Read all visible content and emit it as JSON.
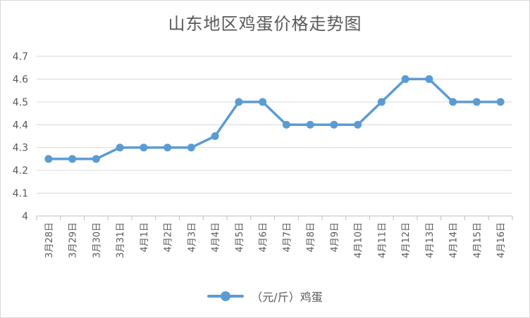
{
  "chart_data": {
    "type": "line",
    "title": "山东地区鸡蛋价格走势图",
    "categories": [
      "3月28日",
      "3月29日",
      "3月30日",
      "3月31日",
      "4月1日",
      "4月2日",
      "4月3日",
      "4月4日",
      "4月5日",
      "4月6日",
      "4月7日",
      "4月8日",
      "4月9日",
      "4月10日",
      "4月11日",
      "4月12日",
      "4月13日",
      "4月14日",
      "4月15日",
      "4月16日"
    ],
    "series": [
      {
        "name": "（元/斤）鸡蛋",
        "color": "#5b9bd5",
        "values": [
          4.25,
          4.25,
          4.25,
          4.3,
          4.3,
          4.3,
          4.3,
          4.35,
          4.5,
          4.5,
          4.4,
          4.4,
          4.4,
          4.4,
          4.5,
          4.6,
          4.6,
          4.5,
          4.5,
          4.5
        ]
      }
    ],
    "yticks": [
      "4",
      "4.1",
      "4.2",
      "4.3",
      "4.4",
      "4.5",
      "4.6",
      "4.7"
    ],
    "ylim": [
      4,
      4.7
    ],
    "grid": true,
    "legend": "bottom"
  }
}
